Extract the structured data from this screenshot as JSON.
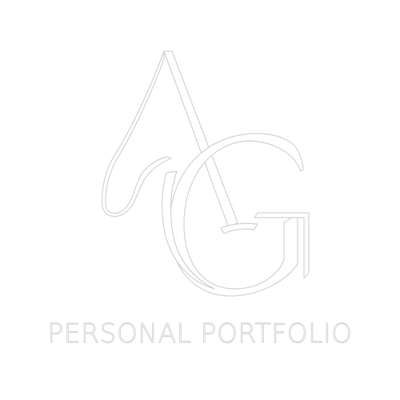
{
  "brand": {
    "tagline": "PERSONAL PORTFOLIO",
    "monogram_text": "AG",
    "stroke_color": "#d2d2d2",
    "fill_color": "#ffffff",
    "background_color": "#ffffff"
  }
}
